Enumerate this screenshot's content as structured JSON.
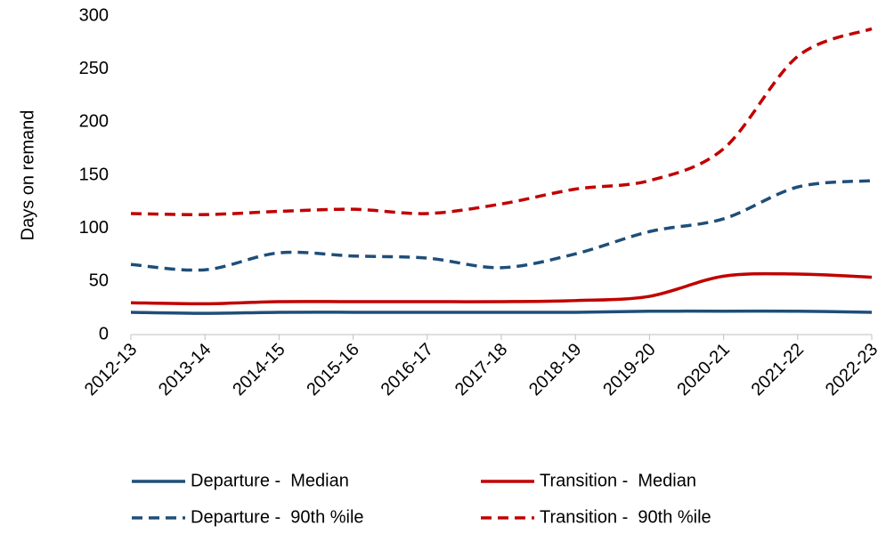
{
  "chart_data": {
    "type": "line",
    "y_label": "Days on remand",
    "categories": [
      "2012-13",
      "2013-14",
      "2014-15",
      "2015-16",
      "2016-17",
      "2017-18",
      "2018-19",
      "2019-20",
      "2020-21",
      "2021-22",
      "2022-23"
    ],
    "series": [
      {
        "name": "Departure -  Median",
        "color": "#1f4e79",
        "dash": false,
        "values": [
          21,
          20,
          21,
          21,
          21,
          21,
          21,
          22,
          22,
          22,
          21
        ]
      },
      {
        "name": "Transition -  Median",
        "color": "#c00000",
        "dash": false,
        "values": [
          30,
          29,
          31,
          31,
          31,
          31,
          32,
          36,
          55,
          57,
          54
        ]
      },
      {
        "name": "Departure -  90th %ile",
        "color": "#1f4e79",
        "dash": true,
        "values": [
          66,
          61,
          77,
          74,
          72,
          63,
          76,
          97,
          109,
          139,
          145
        ]
      },
      {
        "name": "Transition -  90th %ile",
        "color": "#c00000",
        "dash": true,
        "values": [
          114,
          113,
          116,
          118,
          114,
          123,
          137,
          145,
          175,
          262,
          288
        ]
      }
    ],
    "ylim": [
      0,
      300
    ],
    "yticks": [
      0,
      50,
      100,
      150,
      200,
      250,
      300
    ],
    "grid": false,
    "legend": "bottom"
  }
}
